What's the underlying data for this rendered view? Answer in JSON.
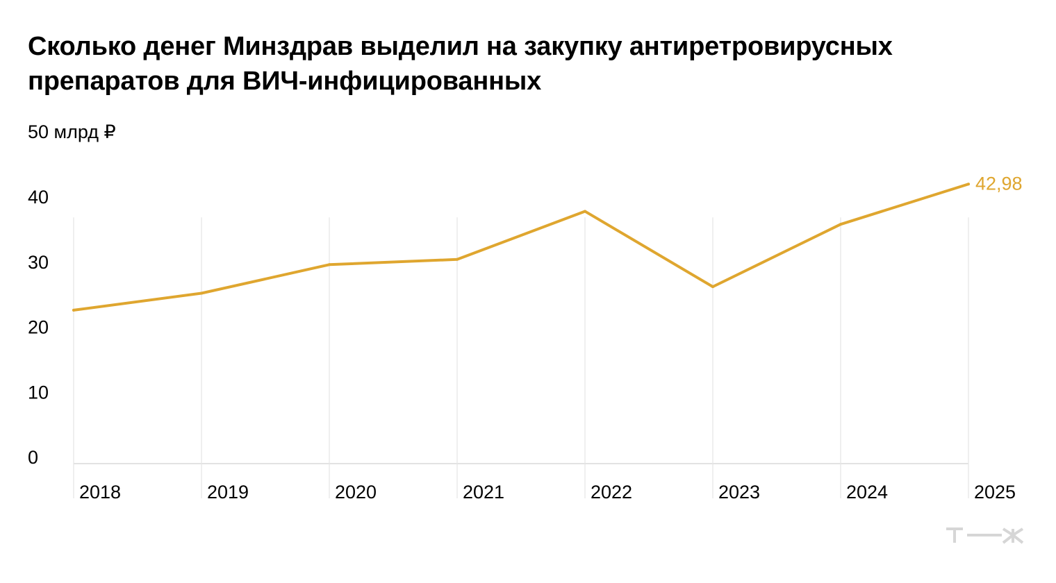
{
  "chart_data": {
    "type": "line",
    "title": "Сколько денег Минздрав выделил на закупку антиретровирусных препаратов для ВИЧ-инфицированных",
    "y_unit_label": "50 млрд ₽",
    "y_ticks": [
      "0",
      "10",
      "20",
      "30",
      "40"
    ],
    "ylim": [
      0,
      50
    ],
    "categories": [
      "2018",
      "2019",
      "2020",
      "2021",
      "2022",
      "2023",
      "2024",
      "2025"
    ],
    "series": [
      {
        "values": [
          23.6,
          26.2,
          30.6,
          31.4,
          38.8,
          27.2,
          36.8,
          42.98
        ]
      }
    ],
    "last_value_label": "42,98",
    "grid": "vertical",
    "line_color": "#dfa62f"
  },
  "brand": {
    "logo_icon": "tj-logo-icon"
  }
}
